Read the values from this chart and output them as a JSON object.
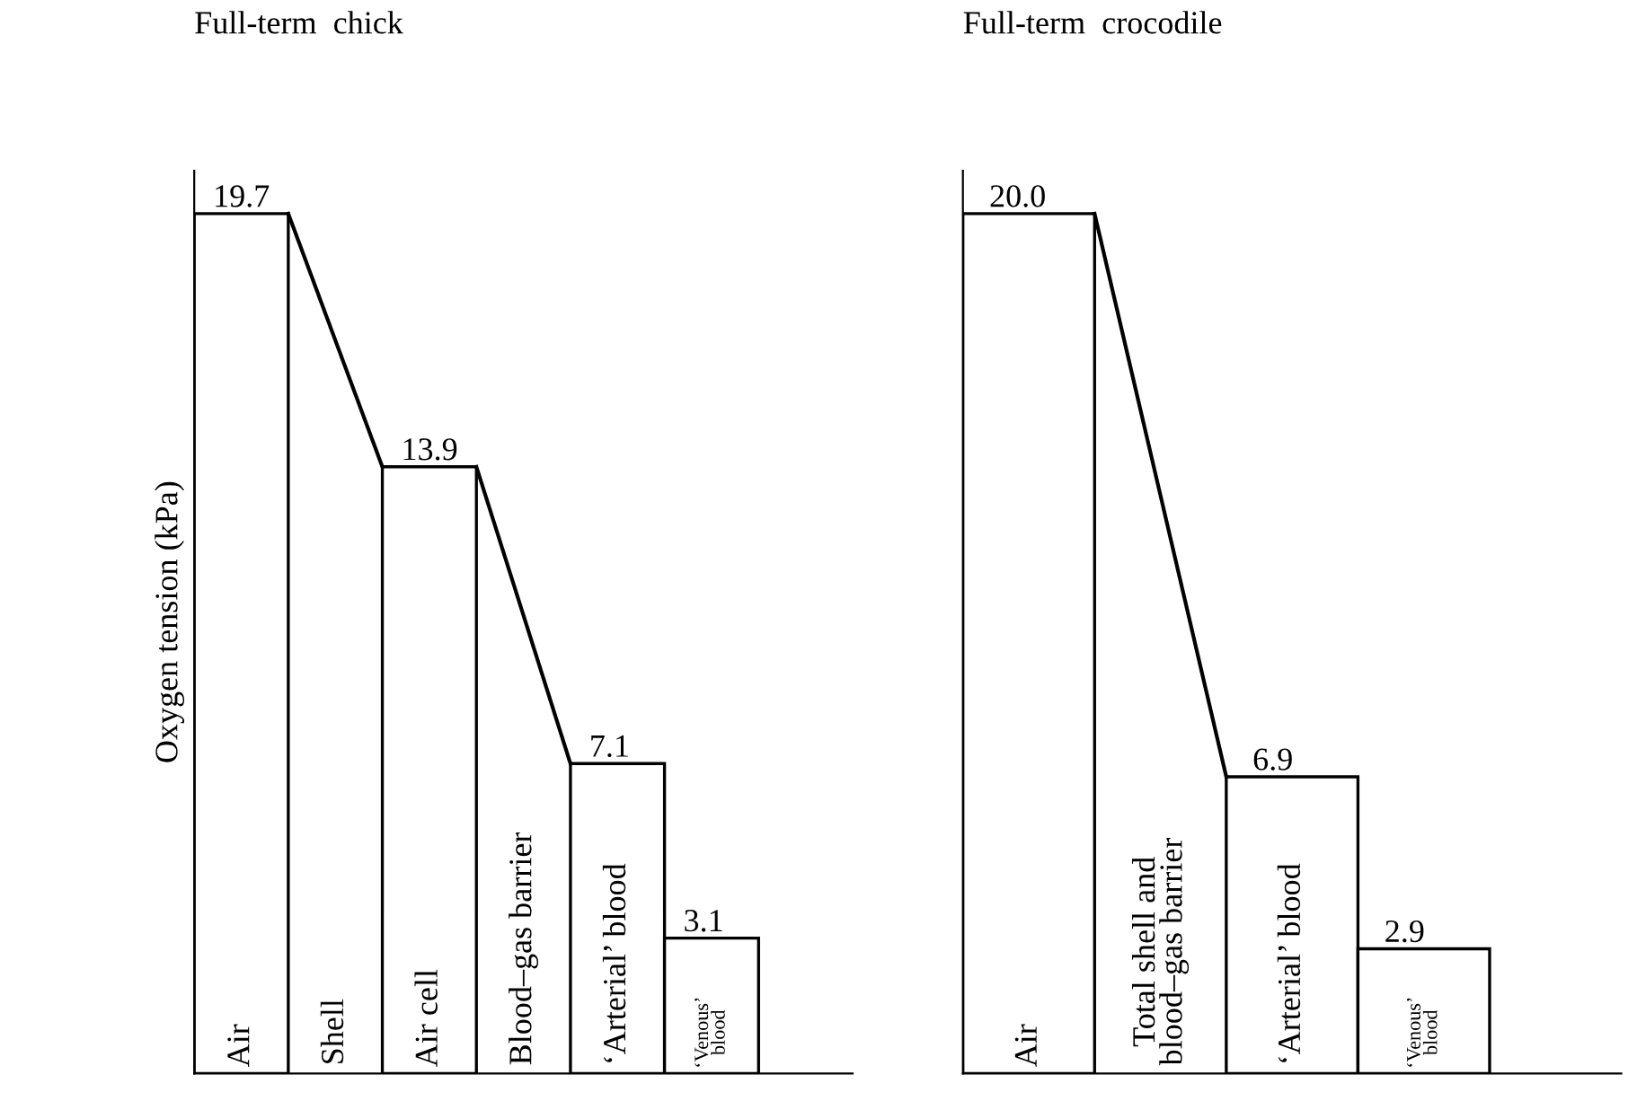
{
  "chart_data": [
    {
      "type": "bar",
      "title": "Full-term  chick",
      "ylabel": "Oxygen tension (kPa)",
      "categories": [
        "Air",
        "Shell",
        "Air cell",
        "Blood–gas barrier",
        "‘Arterial’ blood",
        "‘Venous’\nblood"
      ],
      "values": [
        19.7,
        null,
        13.9,
        null,
        7.1,
        3.1
      ],
      "color": "#ffffff",
      "value_labels": [
        "19.7",
        null,
        "13.9",
        null,
        "7.1",
        "3.1"
      ]
    },
    {
      "type": "bar",
      "title": "Full-term  crocodile",
      "categories": [
        "Air",
        "Total shell and\nblood–gas barrier",
        "‘Arterial’ blood",
        "‘Venous’\nblood"
      ],
      "values": [
        20.0,
        null,
        6.9,
        2.9
      ],
      "color": "#ffffff",
      "value_labels": [
        "20.0",
        null,
        "6.9",
        "2.9"
      ]
    }
  ]
}
